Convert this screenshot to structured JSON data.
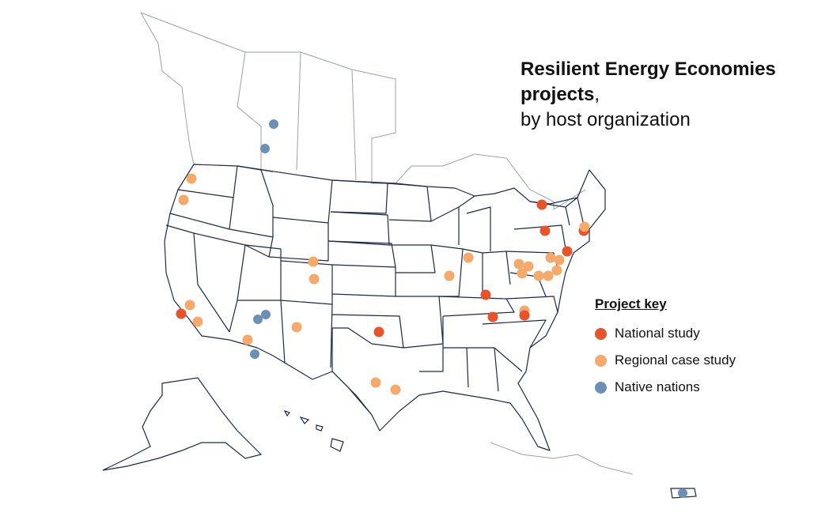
{
  "title": {
    "bold_part": "Resilient Energy Economies projects",
    "comma": ",",
    "subtitle": "by host organization"
  },
  "legend": {
    "heading": "Project key",
    "items": [
      {
        "label": "National study",
        "color": "#e8532a"
      },
      {
        "label": "Regional case study",
        "color": "#f5a96a"
      },
      {
        "label": "Native nations",
        "color": "#6b8fb5"
      }
    ]
  },
  "colors": {
    "border_us": "#1b2a4a",
    "border_canada": "#9aa1ad"
  },
  "markers": [
    {
      "location": "Alberta",
      "category": "Native nations"
    },
    {
      "location": "Alberta",
      "category": "Native nations"
    },
    {
      "location": "Washington",
      "category": "Regional case study"
    },
    {
      "location": "Oregon",
      "category": "Regional case study"
    },
    {
      "location": "California",
      "category": "National study"
    },
    {
      "location": "California",
      "category": "Regional case study"
    },
    {
      "location": "California",
      "category": "Regional case study"
    },
    {
      "location": "Arizona",
      "category": "Native nations"
    },
    {
      "location": "Arizona",
      "category": "Native nations"
    },
    {
      "location": "Arizona",
      "category": "Regional case study"
    },
    {
      "location": "Arizona",
      "category": "Native nations"
    },
    {
      "location": "New Mexico",
      "category": "Regional case study"
    },
    {
      "location": "Colorado",
      "category": "Regional case study"
    },
    {
      "location": "Colorado",
      "category": "Regional case study"
    },
    {
      "location": "Oklahoma",
      "category": "National study"
    },
    {
      "location": "Texas",
      "category": "Regional case study"
    },
    {
      "location": "Texas",
      "category": "Regional case study"
    },
    {
      "location": "Illinois",
      "category": "Regional case study"
    },
    {
      "location": "Indiana",
      "category": "Regional case study"
    },
    {
      "location": "Kentucky",
      "category": "National study"
    },
    {
      "location": "Tennessee",
      "category": "National study"
    },
    {
      "location": "Tennessee",
      "category": "Regional case study"
    },
    {
      "location": "North Carolina",
      "category": "National study"
    },
    {
      "location": "North Carolina",
      "category": "Regional case study"
    },
    {
      "location": "West Virginia",
      "category": "Regional case study"
    },
    {
      "location": "West Virginia",
      "category": "Regional case study"
    },
    {
      "location": "West Virginia",
      "category": "Regional case study"
    },
    {
      "location": "Virginia",
      "category": "Regional case study"
    },
    {
      "location": "Virginia",
      "category": "Regional case study"
    },
    {
      "location": "Maryland",
      "category": "Regional case study"
    },
    {
      "location": "Pennsylvania",
      "category": "Regional case study"
    },
    {
      "location": "New Jersey",
      "category": "National study"
    },
    {
      "location": "New Jersey",
      "category": "National study"
    },
    {
      "location": "New York",
      "category": "National study"
    },
    {
      "location": "New York",
      "category": "National study"
    },
    {
      "location": "Massachusetts",
      "category": "Regional case study"
    },
    {
      "location": "Massachusetts",
      "category": "Native nations"
    },
    {
      "location": "Puerto Rico",
      "category": "Regional case study"
    }
  ]
}
